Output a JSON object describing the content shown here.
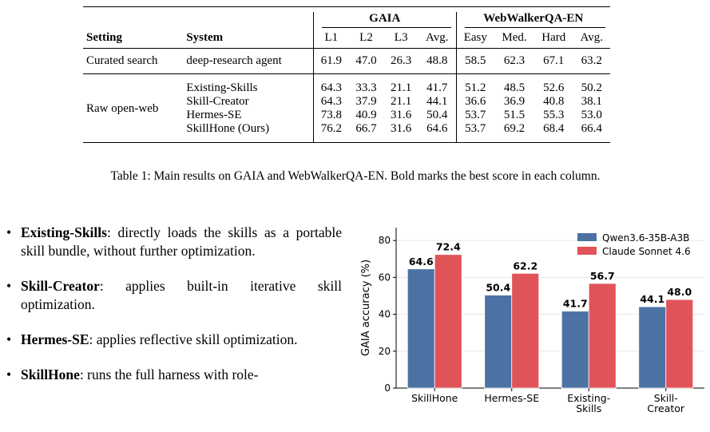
{
  "table": {
    "group_headers": [
      "GAIA",
      "WebWalkerQA-EN"
    ],
    "columns": [
      "Setting",
      "System",
      "L1",
      "L2",
      "L3",
      "Avg.",
      "Easy",
      "Med.",
      "Hard",
      "Avg."
    ],
    "curated": {
      "setting": "Curated search",
      "system": "deep-research agent",
      "values": [
        "61.9",
        "47.0",
        "26.3",
        "48.8",
        "58.5",
        "62.3",
        "67.1",
        "63.2"
      ]
    },
    "raw": {
      "setting": "Raw open-web",
      "rows": [
        {
          "system": "Existing-Skills",
          "values": [
            "64.3",
            "33.3",
            "21.1",
            "41.7",
            "51.2",
            "48.5",
            "52.6",
            "50.2"
          ]
        },
        {
          "system": "Skill-Creator",
          "values": [
            "64.3",
            "37.9",
            "21.1",
            "44.1",
            "36.6",
            "36.9",
            "40.8",
            "38.1"
          ]
        },
        {
          "system": "Hermes-SE",
          "values": [
            "73.8",
            "40.9",
            "31.6",
            "50.4",
            "53.7",
            "51.5",
            "55.3",
            "53.0"
          ]
        },
        {
          "system": "SkillHone (Ours)",
          "values": [
            "76.2",
            "66.7",
            "31.6",
            "64.6",
            "53.7",
            "69.2",
            "68.4",
            "66.4"
          ]
        }
      ]
    },
    "caption": "Table 1: Main results on GAIA and WebWalkerQA-EN. Bold marks the best score in each column."
  },
  "bullets": [
    {
      "term": "Existing-Skills",
      "text": ": directly loads the skills as a portable skill bundle, without further optimization."
    },
    {
      "term": "Skill-Creator",
      "text": ": applies built-in iterative skill optimization."
    },
    {
      "term": "Hermes-SE",
      "text": ": applies reflective skill optimization."
    },
    {
      "term": "SkillHone",
      "text": ": runs the full harness with role-"
    }
  ],
  "chart_data": {
    "type": "bar",
    "categories": [
      [
        "SkillHone"
      ],
      [
        "Hermes-SE"
      ],
      [
        "Existing-",
        "Skills"
      ],
      [
        "Skill-",
        "Creator"
      ]
    ],
    "series": [
      {
        "name": "Qwen3.6-35B-A3B",
        "color": "#4c72a4",
        "values": [
          64.6,
          50.4,
          41.7,
          44.1
        ]
      },
      {
        "name": "Claude Sonnet 4.6",
        "color": "#e05459",
        "values": [
          72.4,
          62.2,
          56.7,
          48.0
        ]
      }
    ],
    "ylabel": "GAIA accuracy (%)",
    "yticks": [
      0,
      20,
      40,
      60,
      80
    ],
    "ylim": [
      0,
      87
    ],
    "grid": true,
    "legend": "top-right"
  }
}
